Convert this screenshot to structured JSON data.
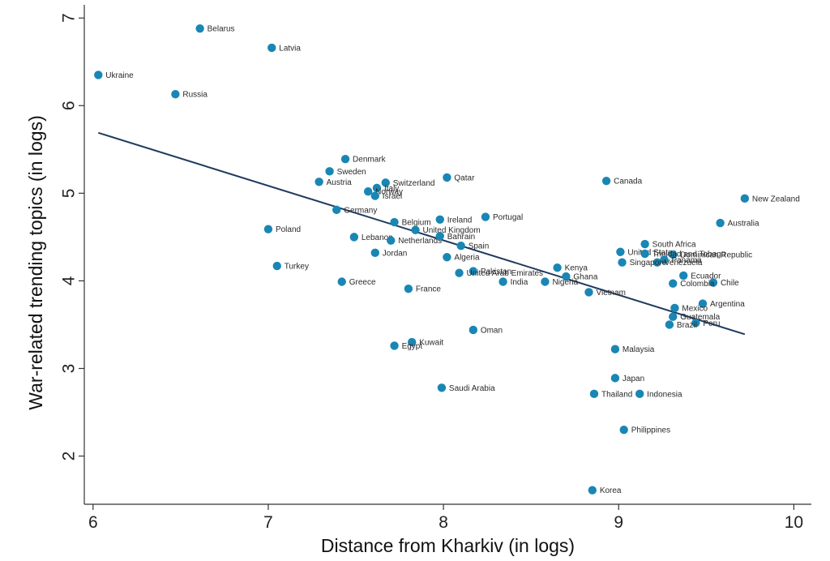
{
  "chart_data": {
    "type": "scatter",
    "xlabel": "Distance from Kharkiv (in logs)",
    "ylabel": "War-related trending topics (in logs)",
    "xlim": [
      5.95,
      10.1
    ],
    "ylim": [
      1.45,
      7.15
    ],
    "xticks": [
      6,
      7,
      8,
      9,
      10
    ],
    "yticks": [
      2,
      3,
      4,
      5,
      6,
      7
    ],
    "grid": false,
    "point_color": "#1a86b4",
    "fit_line_color": "#1f3a5f",
    "fit_line": {
      "x": [
        6.03,
        9.72
      ],
      "y": [
        5.69,
        3.39
      ]
    },
    "points": [
      {
        "label": "Belarus",
        "x": 6.61,
        "y": 6.88
      },
      {
        "label": "Latvia",
        "x": 7.02,
        "y": 6.66
      },
      {
        "label": "Ukraine",
        "x": 6.03,
        "y": 6.35
      },
      {
        "label": "Russia",
        "x": 6.47,
        "y": 6.13
      },
      {
        "label": "Denmark",
        "x": 7.44,
        "y": 5.39
      },
      {
        "label": "Sweden",
        "x": 7.35,
        "y": 5.25
      },
      {
        "label": "Austria",
        "x": 7.29,
        "y": 5.13
      },
      {
        "label": "Switzerland",
        "x": 7.67,
        "y": 5.12
      },
      {
        "label": "Italy",
        "x": 7.62,
        "y": 5.06
      },
      {
        "label": "Norway",
        "x": 7.57,
        "y": 5.02
      },
      {
        "label": "Israel",
        "x": 7.61,
        "y": 4.97
      },
      {
        "label": "Qatar",
        "x": 8.02,
        "y": 5.18
      },
      {
        "label": "Canada",
        "x": 8.93,
        "y": 5.14
      },
      {
        "label": "New Zealand",
        "x": 9.72,
        "y": 4.94
      },
      {
        "label": "Germany",
        "x": 7.39,
        "y": 4.81
      },
      {
        "label": "Poland",
        "x": 7.0,
        "y": 4.59
      },
      {
        "label": "Belgium",
        "x": 7.72,
        "y": 4.67
      },
      {
        "label": "Ireland",
        "x": 7.98,
        "y": 4.7
      },
      {
        "label": "Portugal",
        "x": 8.24,
        "y": 4.73
      },
      {
        "label": "Australia",
        "x": 9.58,
        "y": 4.66
      },
      {
        "label": "United Kingdom",
        "x": 7.84,
        "y": 4.58
      },
      {
        "label": "Lebanon",
        "x": 7.49,
        "y": 4.5
      },
      {
        "label": "Netherlands",
        "x": 7.7,
        "y": 4.46
      },
      {
        "label": "Bahrain",
        "x": 7.98,
        "y": 4.51
      },
      {
        "label": "Spain",
        "x": 8.1,
        "y": 4.4
      },
      {
        "label": "South Africa",
        "x": 9.15,
        "y": 4.42
      },
      {
        "label": "United States",
        "x": 9.01,
        "y": 4.33
      },
      {
        "label": "Dominican Republic",
        "x": 9.31,
        "y": 4.3
      },
      {
        "label": "Trinidad and Tobago",
        "x": 9.15,
        "y": 4.31
      },
      {
        "label": "Panama",
        "x": 9.26,
        "y": 4.24
      },
      {
        "label": "Venezuela",
        "x": 9.22,
        "y": 4.21
      },
      {
        "label": "Singapore",
        "x": 9.02,
        "y": 4.21
      },
      {
        "label": "Jordan",
        "x": 7.61,
        "y": 4.32
      },
      {
        "label": "Algeria",
        "x": 8.02,
        "y": 4.27
      },
      {
        "label": "Turkey",
        "x": 7.05,
        "y": 4.17
      },
      {
        "label": "Kenya",
        "x": 8.65,
        "y": 4.15
      },
      {
        "label": "Pakistan",
        "x": 8.17,
        "y": 4.11
      },
      {
        "label": "United Arab Emirates",
        "x": 8.09,
        "y": 4.09
      },
      {
        "label": "Ghana",
        "x": 8.7,
        "y": 4.05
      },
      {
        "label": "Ecuador",
        "x": 9.37,
        "y": 4.06
      },
      {
        "label": "Greece",
        "x": 7.42,
        "y": 3.99
      },
      {
        "label": "India",
        "x": 8.34,
        "y": 3.99
      },
      {
        "label": "Nigeria",
        "x": 8.58,
        "y": 3.99
      },
      {
        "label": "Chile",
        "x": 9.54,
        "y": 3.98
      },
      {
        "label": "Colombia",
        "x": 9.31,
        "y": 3.97
      },
      {
        "label": "France",
        "x": 7.8,
        "y": 3.91
      },
      {
        "label": "Vietnam",
        "x": 8.83,
        "y": 3.87
      },
      {
        "label": "Argentina",
        "x": 9.48,
        "y": 3.74
      },
      {
        "label": "Mexico",
        "x": 9.32,
        "y": 3.69
      },
      {
        "label": "Guatemala",
        "x": 9.31,
        "y": 3.59
      },
      {
        "label": "Peru",
        "x": 9.44,
        "y": 3.52
      },
      {
        "label": "Brazil",
        "x": 9.29,
        "y": 3.5
      },
      {
        "label": "Oman",
        "x": 8.17,
        "y": 3.44
      },
      {
        "label": "Kuwait",
        "x": 7.82,
        "y": 3.3
      },
      {
        "label": "Egypt",
        "x": 7.72,
        "y": 3.26
      },
      {
        "label": "Malaysia",
        "x": 8.98,
        "y": 3.22
      },
      {
        "label": "Japan",
        "x": 8.98,
        "y": 2.89
      },
      {
        "label": "Saudi Arabia",
        "x": 7.99,
        "y": 2.78
      },
      {
        "label": "Thailand",
        "x": 8.86,
        "y": 2.71
      },
      {
        "label": "Indonesia",
        "x": 9.12,
        "y": 2.71
      },
      {
        "label": "Philippines",
        "x": 9.03,
        "y": 2.3
      },
      {
        "label": "Korea",
        "x": 8.85,
        "y": 1.61
      }
    ]
  }
}
